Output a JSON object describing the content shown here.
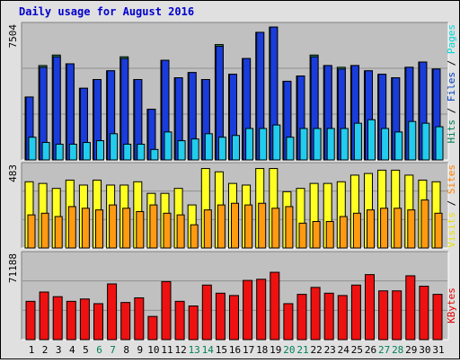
{
  "chart_data": {
    "type": "bar",
    "title": "Daily usage for August 2016",
    "categories": [
      "1",
      "2",
      "3",
      "4",
      "5",
      "6",
      "7",
      "8",
      "9",
      "10",
      "11",
      "12",
      "13",
      "14",
      "15",
      "16",
      "17",
      "18",
      "19",
      "20",
      "21",
      "22",
      "23",
      "24",
      "25",
      "26",
      "27",
      "28",
      "29",
      "30",
      "31"
    ],
    "weekend_days": [
      "6",
      "7",
      "13",
      "14",
      "20",
      "21",
      "27",
      "28"
    ],
    "panels": {
      "requests": {
        "ymax_label": "7504",
        "ymax": 7504,
        "legend": [
          {
            "label": "Pages",
            "color": "#00d8d8"
          },
          {
            "label": "Files",
            "color": "#0040c0"
          },
          {
            "label": "Hits",
            "color": "#00805a"
          }
        ],
        "series": [
          {
            "name": "Hits",
            "color": "#2e8b57",
            "values": [
              3600,
              5400,
              6000,
              5500,
              4100,
              4600,
              5100,
              5900,
              4600,
              2900,
              5700,
              4700,
              5000,
              4600,
              6600,
              4900,
              5800,
              7300,
              7600,
              4500,
              4800,
              6000,
              5400,
              5300,
              5400,
              5100,
              4900,
              4700,
              5300,
              5600,
              5200
            ]
          },
          {
            "name": "Files",
            "color": "#1a3cdb",
            "values": [
              3600,
              5300,
              5900,
              5500,
              4100,
              4600,
              5100,
              5800,
              4600,
              2900,
              5700,
              4700,
              5000,
              4600,
              6500,
              4900,
              5800,
              7300,
              7600,
              4500,
              4800,
              5900,
              5400,
              5200,
              5400,
              5100,
              4900,
              4700,
              5300,
              5600,
              5200
            ]
          },
          {
            "name": "Pages",
            "color": "#22ccee",
            "values": [
              1300,
              1000,
              900,
              900,
              1000,
              1100,
              1500,
              900,
              900,
              600,
              1600,
              1100,
              1200,
              1500,
              1300,
              1400,
              1800,
              1800,
              2000,
              1300,
              1800,
              1800,
              1800,
              1800,
              2100,
              2300,
              1800,
              1600,
              2200,
              2100,
              1900
            ]
          }
        ]
      },
      "visits": {
        "ymax_label": "483",
        "ymax": 483,
        "legend": [
          {
            "label": "Sites",
            "color": "#ff8000"
          },
          {
            "label": "Visits",
            "color": "#e8e000"
          }
        ],
        "series": [
          {
            "name": "Visits",
            "color": "#ffff22",
            "values": [
              400,
              390,
              360,
              410,
              380,
              410,
              380,
              380,
              400,
              330,
              330,
              360,
              260,
              480,
              460,
              390,
              380,
              480,
              480,
              340,
              360,
              390,
              390,
              400,
              440,
              450,
              470,
              470,
              440,
              410,
              400
            ]
          },
          {
            "name": "Sites",
            "color": "#ff9a11",
            "values": [
              200,
              210,
              190,
              250,
              240,
              230,
              260,
              240,
              220,
              260,
              210,
              200,
              140,
              230,
              260,
              270,
              260,
              270,
              240,
              250,
              150,
              160,
              160,
              190,
              210,
              230,
              240,
              240,
              230,
              290,
              210
            ]
          }
        ]
      },
      "kbytes": {
        "ymax_label": "71188",
        "ymax": 71188,
        "legend": [
          {
            "label": "KBytes",
            "color": "#e00000"
          }
        ],
        "series": [
          {
            "name": "KBytes",
            "color": "#ee1111",
            "values": [
              33000,
              41000,
              37000,
              33000,
              35000,
              31000,
              48000,
              32000,
              36000,
              20000,
              50000,
              33000,
              29000,
              47000,
              40000,
              38000,
              51000,
              52000,
              58000,
              31000,
              39000,
              45000,
              40000,
              38000,
              47000,
              56000,
              42000,
              42000,
              55000,
              46000,
              39000
            ]
          }
        ]
      }
    }
  }
}
